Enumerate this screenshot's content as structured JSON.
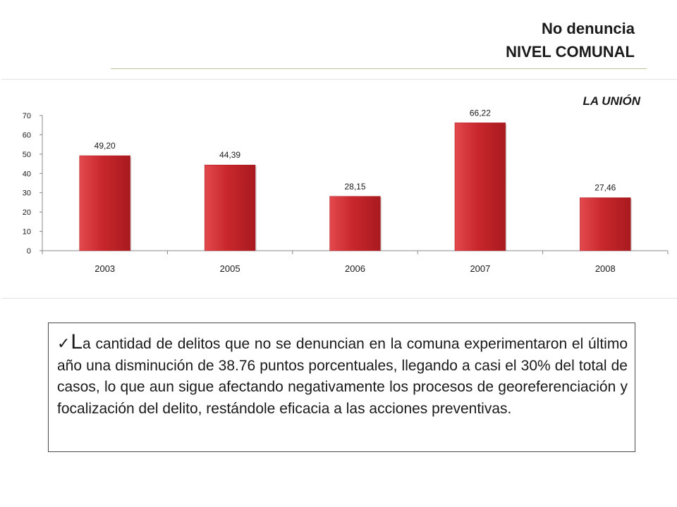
{
  "header": {
    "title_line1": "No denuncia",
    "title_line2": "NIVEL COMUNAL"
  },
  "chart_data": {
    "type": "bar",
    "title": "LA UNIÓN",
    "categories": [
      "2003",
      "2005",
      "2006",
      "2007",
      "2008"
    ],
    "values": [
      49.2,
      44.39,
      28.15,
      66.22,
      27.46
    ],
    "value_labels": [
      "49,20",
      "44,39",
      "28,15",
      "66,22",
      "27,46"
    ],
    "ylim": [
      0,
      70
    ],
    "yticks": [
      0,
      10,
      20,
      30,
      40,
      50,
      60,
      70
    ],
    "grid": false,
    "legend": "none",
    "bar_color": "#c8272c",
    "bar_color_light": "#e2494d",
    "bar_color_dark": "#a81a1f"
  },
  "note": {
    "check": "✓",
    "first_letter": "L",
    "text": "a cantidad de delitos que no se denuncian en la comuna experimentaron el último año una disminución de 38.76 puntos porcentuales, llegando a casi el 30% del total de casos, lo que aun sigue afectando negativamente los procesos de georeferenciación y focalización del delito, restándole eficacia a las acciones preventivas."
  }
}
